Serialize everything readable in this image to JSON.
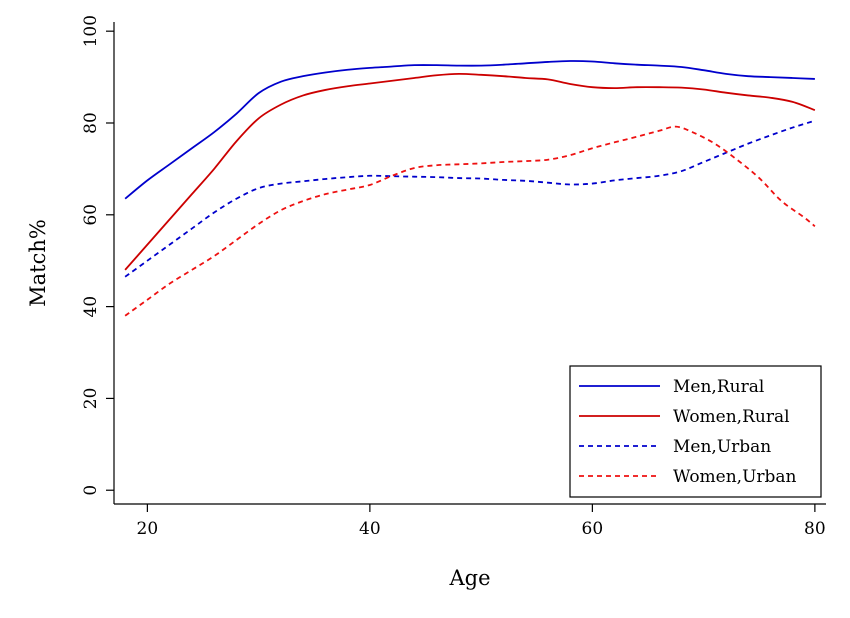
{
  "chart_data": {
    "type": "line",
    "title": "",
    "xlabel": "Age",
    "ylabel": "Match%",
    "xlim": [
      17,
      81
    ],
    "ylim": [
      -3,
      102
    ],
    "xticks": [
      20,
      40,
      60,
      80
    ],
    "yticks": [
      0,
      20,
      40,
      60,
      80,
      100
    ],
    "grid": false,
    "legend_position": "bottom-right",
    "series": [
      {
        "name": "Men,Rural",
        "color": "#0000cc",
        "dash": "solid",
        "x": [
          18,
          20,
          22,
          24,
          26,
          28,
          30,
          32,
          34,
          36,
          38,
          40,
          42,
          44,
          46,
          48,
          50,
          52,
          54,
          56,
          58,
          60,
          62,
          64,
          66,
          68,
          70,
          72,
          74,
          76,
          78,
          80
        ],
        "y": [
          63.5,
          67.5,
          71,
          74.5,
          78,
          82,
          86.5,
          89,
          90.2,
          91,
          91.6,
          92,
          92.3,
          92.6,
          92.6,
          92.5,
          92.5,
          92.7,
          93,
          93.3,
          93.5,
          93.4,
          93,
          92.7,
          92.5,
          92.2,
          91.5,
          90.7,
          90.2,
          90,
          89.8,
          89.6
        ]
      },
      {
        "name": "Women,Rural",
        "color": "#cc0000",
        "dash": "solid",
        "x": [
          18,
          20,
          22,
          24,
          26,
          28,
          30,
          32,
          34,
          36,
          38,
          40,
          42,
          44,
          46,
          48,
          50,
          52,
          54,
          56,
          58,
          60,
          62,
          64,
          66,
          68,
          70,
          72,
          74,
          76,
          78,
          80
        ],
        "y": [
          48,
          53.5,
          59,
          64.5,
          70,
          76,
          81,
          84,
          86,
          87.2,
          88,
          88.6,
          89.2,
          89.8,
          90.4,
          90.7,
          90.5,
          90.2,
          89.8,
          89.5,
          88.5,
          87.8,
          87.6,
          87.8,
          87.8,
          87.7,
          87.3,
          86.6,
          86,
          85.5,
          84.6,
          82.8
        ]
      },
      {
        "name": "Men,Urban",
        "color": "#0000cc",
        "dash": "dashed",
        "x": [
          18,
          20,
          22,
          24,
          26,
          28,
          30,
          32,
          34,
          36,
          38,
          40,
          42,
          44,
          46,
          48,
          50,
          52,
          54,
          56,
          58,
          60,
          62,
          64,
          66,
          68,
          70,
          72,
          74,
          76,
          78,
          80
        ],
        "y": [
          46.5,
          50,
          53.5,
          57,
          60.5,
          63.5,
          65.8,
          66.8,
          67.3,
          67.8,
          68.2,
          68.5,
          68.4,
          68.3,
          68.2,
          68,
          67.9,
          67.6,
          67.4,
          67,
          66.6,
          66.8,
          67.5,
          68,
          68.5,
          69.5,
          71.5,
          73.5,
          75.5,
          77.3,
          79,
          80.5
        ]
      },
      {
        "name": "Women,Urban",
        "color": "#ee1111",
        "dash": "dashed",
        "x": [
          18,
          20,
          22,
          24,
          26,
          28,
          30,
          32,
          34,
          36,
          38,
          40,
          42,
          44,
          46,
          48,
          50,
          52,
          54,
          56,
          58,
          60,
          62,
          64,
          66,
          67.5,
          69,
          71,
          73,
          75,
          77,
          79,
          80
        ],
        "y": [
          38,
          41.5,
          45,
          48,
          51,
          54.5,
          58,
          61,
          63,
          64.5,
          65.5,
          66.5,
          68.5,
          70.2,
          70.8,
          71,
          71.2,
          71.5,
          71.7,
          72,
          73,
          74.5,
          75.8,
          77,
          78.3,
          79.2,
          78,
          75.5,
          72,
          68,
          63,
          59.5,
          57.5
        ]
      }
    ]
  }
}
